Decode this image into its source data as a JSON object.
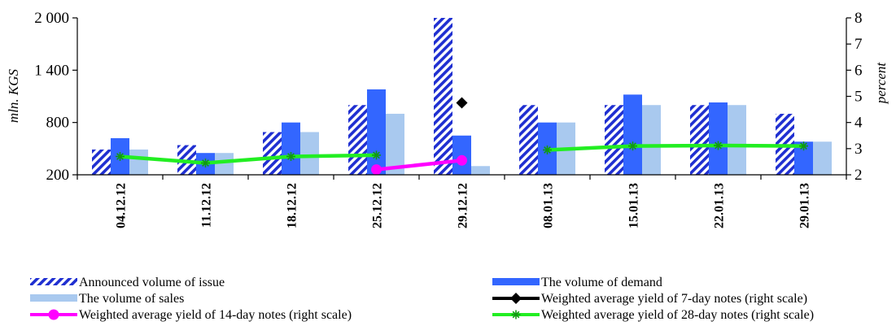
{
  "chart_data": {
    "type": "bar",
    "categories": [
      "04.12.12",
      "11.12.12",
      "18.12.12",
      "25.12.12",
      "29.12.12",
      "08.01.13",
      "15.01.13",
      "22.01.13",
      "29.01.13"
    ],
    "left_axis": {
      "label": "mln. KGS",
      "ylim": [
        200,
        2000
      ],
      "ticks": [
        200,
        800,
        1400,
        2000
      ],
      "tick_labels": [
        "200",
        "800",
        "1 400",
        "2 000"
      ]
    },
    "right_axis": {
      "label": "percent",
      "ylim": [
        2,
        8
      ],
      "ticks": [
        2,
        3,
        4,
        5,
        6,
        7,
        8
      ],
      "tick_labels": [
        "2",
        "3",
        "4",
        "5",
        "6",
        "7",
        "8"
      ]
    },
    "series": [
      {
        "name": "Announced volume of issue",
        "type": "bar",
        "axis": "left",
        "style": "hatched",
        "color": "#1f2fd1",
        "values": [
          490,
          540,
          690,
          1000,
          2000,
          1000,
          1000,
          1000,
          900
        ]
      },
      {
        "name": "The volume of demand",
        "type": "bar",
        "axis": "left",
        "style": "solid",
        "color": "#3366ff",
        "values": [
          620,
          450,
          800,
          1180,
          650,
          800,
          1120,
          1030,
          580
        ]
      },
      {
        "name": "The volume of sales",
        "type": "bar",
        "axis": "left",
        "style": "solid",
        "color": "#a9c9ef",
        "values": [
          490,
          450,
          690,
          900,
          300,
          800,
          1000,
          1000,
          580
        ]
      },
      {
        "name": "Weighted average yield of 7-day notes (right scale)",
        "type": "line",
        "axis": "right",
        "color": "#000000",
        "marker": "diamond",
        "values": [
          null,
          null,
          null,
          null,
          4.75,
          null,
          null,
          null,
          null
        ]
      },
      {
        "name": "Weighted average yield of 14-day notes (right scale)",
        "type": "line",
        "axis": "right",
        "color": "#ff00ff",
        "marker": "circle",
        "values": [
          null,
          null,
          null,
          2.2,
          2.55,
          null,
          null,
          null,
          null
        ]
      },
      {
        "name": "Weighted average yield of 28-day notes (right scale)",
        "type": "line",
        "axis": "right",
        "color": "#22ee22",
        "marker": "asterisk",
        "values": [
          2.7,
          2.45,
          2.7,
          2.75,
          null,
          2.95,
          3.1,
          3.12,
          3.1
        ]
      }
    ],
    "grid": false,
    "legend_position": "bottom"
  }
}
